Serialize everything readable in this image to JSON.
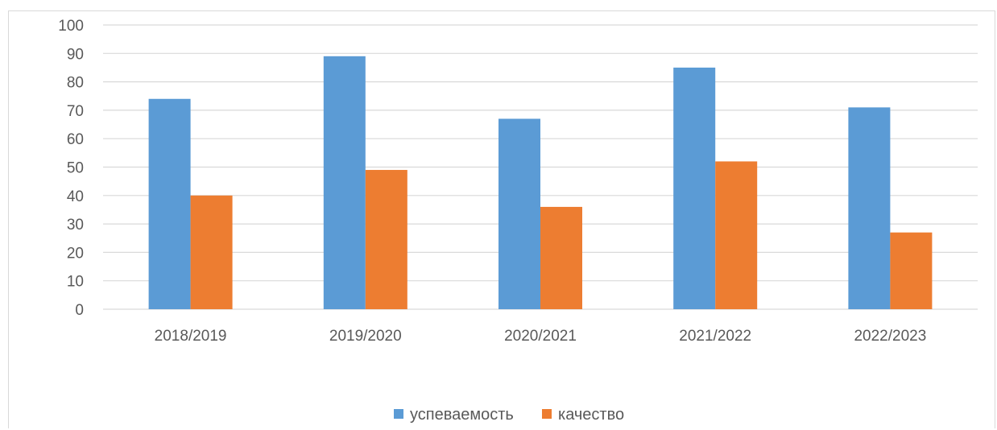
{
  "chart_data": {
    "type": "bar",
    "categories": [
      "2018/2019",
      "2019/2020",
      "2020/2021",
      "2021/2022",
      "2022/2023"
    ],
    "series": [
      {
        "name": "успеваемость",
        "values": [
          74,
          89,
          67,
          85,
          71
        ],
        "color": "#5b9bd5"
      },
      {
        "name": "качество",
        "values": [
          40,
          49,
          36,
          52,
          27
        ],
        "color": "#ed7d31"
      }
    ],
    "yticks": [
      "0",
      "10",
      "20",
      "30",
      "40",
      "50",
      "60",
      "70",
      "80",
      "90",
      "100"
    ],
    "ylim": [
      0,
      100
    ],
    "grid": true,
    "gridline_color": "#d9d9d9",
    "legend_position": "bottom",
    "title": "",
    "xlabel": "",
    "ylabel": ""
  }
}
